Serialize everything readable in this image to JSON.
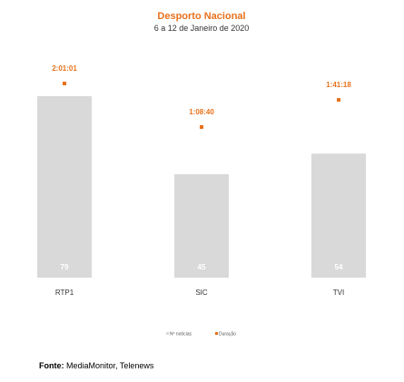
{
  "chart_data": {
    "type": "bar",
    "title": "Desporto Nacional",
    "subtitle": "6 a 12 de Janeiro de 2020",
    "categories": [
      "RTP1",
      "SIC",
      "TVI"
    ],
    "series": [
      {
        "name": "Nº notícias",
        "values": [
          79,
          45,
          54
        ],
        "color": "#d9d9d9"
      },
      {
        "name": "Duração",
        "values": [
          "2:01:01",
          "1:08:40",
          "1:41:18"
        ],
        "color": "#e8711c"
      }
    ],
    "ylim": [
      0,
      79
    ],
    "legend_position": "bottom",
    "grid": false
  },
  "source": {
    "label": "Fonte:",
    "text": " MediaMonitor, Telenews"
  },
  "colors": {
    "accent": "#e8711c",
    "bar": "#d9d9d9"
  }
}
